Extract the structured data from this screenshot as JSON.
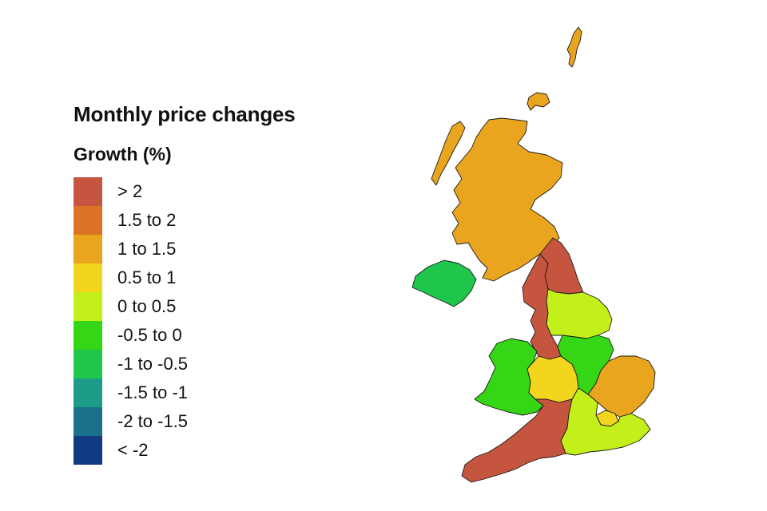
{
  "title": "Monthly price changes",
  "legend": {
    "title": "Growth (%)",
    "items": [
      {
        "label": "> 2",
        "color": "#c5553f"
      },
      {
        "label": "1.5 to 2",
        "color": "#db7226"
      },
      {
        "label": "1 to 1.5",
        "color": "#e9a51d"
      },
      {
        "label": "0.5 to 1",
        "color": "#f2d51c"
      },
      {
        "label": "0 to 0.5",
        "color": "#c3f01a"
      },
      {
        "label": "-0.5 to 0",
        "color": "#35d616"
      },
      {
        "label": "-1 to -0.5",
        "color": "#1ec64c"
      },
      {
        "label": "-1.5 to -1",
        "color": "#1c9c88"
      },
      {
        "label": "-2 to -1.5",
        "color": "#19718a"
      },
      {
        "label": "< -2",
        "color": "#123a82"
      }
    ]
  },
  "regions": [
    {
      "name": "Scotland",
      "band": "1 to 1.5"
    },
    {
      "name": "Northern Ireland",
      "band": "-1 to -0.5"
    },
    {
      "name": "North East",
      "band": "> 2"
    },
    {
      "name": "North West",
      "band": "> 2"
    },
    {
      "name": "Yorkshire and The Humber",
      "band": "0 to 0.5"
    },
    {
      "name": "Wales",
      "band": "-0.5 to 0"
    },
    {
      "name": "West Midlands",
      "band": "0.5 to 1"
    },
    {
      "name": "East Midlands",
      "band": "-0.5 to 0"
    },
    {
      "name": "East of England",
      "band": "1 to 1.5"
    },
    {
      "name": "London",
      "band": "0.5 to 1"
    },
    {
      "name": "South East",
      "band": "0 to 0.5"
    },
    {
      "name": "South West",
      "band": "> 2"
    }
  ]
}
